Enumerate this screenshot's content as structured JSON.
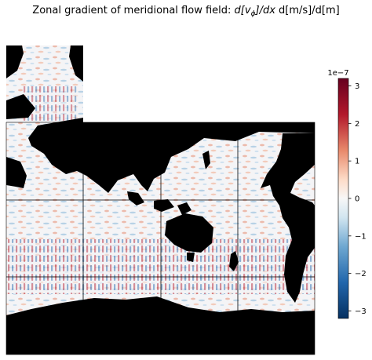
{
  "chart_data": {
    "type": "heatmap",
    "title_prefix": "Zonal gradient of meridional flow field: ",
    "title_math": "d[v",
    "title_sub": "ϕ",
    "title_math_rest": "]/dx",
    "title_units": "  d[m/s]/d[m]",
    "colorbar": {
      "colormap": "RdBu_r",
      "scale_label": "1e−7",
      "range": [
        -3.2,
        3.2
      ],
      "ticks": [
        3,
        2,
        1,
        0,
        -1,
        -2,
        -3
      ],
      "tick_labels": [
        "3",
        "2",
        "1",
        "0",
        "−1",
        "−2",
        "−3"
      ]
    },
    "colors": {
      "land": "#000000",
      "grid": "#000000",
      "positive": "#b2182b",
      "negative": "#2166ac",
      "zero": "#f7f7f7"
    },
    "grid": true,
    "legend": "right"
  }
}
